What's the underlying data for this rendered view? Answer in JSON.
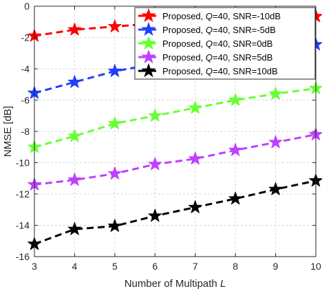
{
  "chart_data": {
    "type": "line",
    "title": "",
    "xlabel": "Number of Multipath",
    "xlabel_var": "L",
    "ylabel": "NMSE [dB]",
    "x": [
      3,
      4,
      5,
      6,
      7,
      8,
      9,
      10
    ],
    "xlim": [
      3,
      10
    ],
    "ylim": [
      -16,
      0
    ],
    "xticks": [
      "3",
      "4",
      "5",
      "6",
      "7",
      "8",
      "9",
      "10"
    ],
    "yticks": [
      "0",
      "-2",
      "-4",
      "-6",
      "-8",
      "-10",
      "-12",
      "-14",
      "-16"
    ],
    "grid": true,
    "legend_position": "top-right",
    "series": [
      {
        "name": "Proposed, Q=40, SNR=-10dB",
        "legend_prefix": "Proposed, ",
        "legend_var": "Q",
        "legend_suffix": "=40, SNR=-10dB",
        "color": "#ff0000",
        "values": [
          -1.9,
          -1.5,
          -1.3,
          -1.1,
          -1.0,
          -0.9,
          -0.8,
          -0.65
        ]
      },
      {
        "name": "Proposed, Q=40, SNR=-5dB",
        "legend_prefix": "Proposed, ",
        "legend_var": "Q",
        "legend_suffix": "=40, SNR=-5dB",
        "color": "#1f3fff",
        "values": [
          -5.55,
          -4.85,
          -4.15,
          -3.7,
          -3.4,
          -3.1,
          -2.8,
          -2.45
        ]
      },
      {
        "name": "Proposed, Q=40, SNR=0dB",
        "legend_prefix": "Proposed, ",
        "legend_var": "Q",
        "legend_suffix": "=40, SNR=0dB",
        "color": "#66ff33",
        "values": [
          -9.0,
          -8.3,
          -7.5,
          -7.0,
          -6.5,
          -6.0,
          -5.6,
          -5.25
        ]
      },
      {
        "name": "Proposed, Q=40, SNR=5dB",
        "legend_prefix": "Proposed, ",
        "legend_var": "Q",
        "legend_suffix": "=40, SNR=5dB",
        "color": "#bf40ff",
        "values": [
          -11.4,
          -11.1,
          -10.7,
          -10.1,
          -9.75,
          -9.2,
          -8.7,
          -8.2
        ]
      },
      {
        "name": "Proposed, Q=40, SNR=10dB",
        "legend_prefix": "Proposed, ",
        "legend_var": "Q",
        "legend_suffix": "=40, SNR=10dB",
        "color": "#000000",
        "values": [
          -15.2,
          -14.25,
          -14.05,
          -13.4,
          -12.85,
          -12.3,
          -11.7,
          -11.15
        ]
      }
    ]
  }
}
